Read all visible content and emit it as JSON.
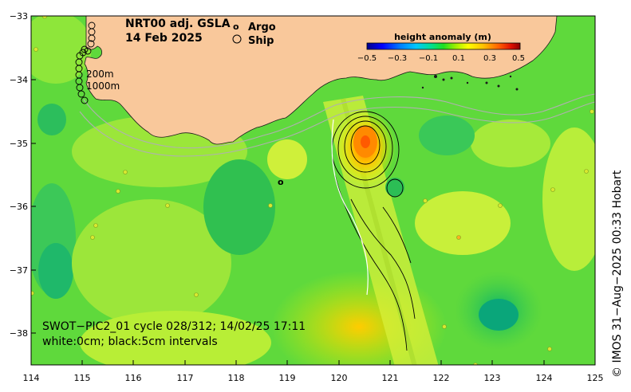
{
  "title": {
    "product": "NRT00 adj. GSLA",
    "date": "14 Feb 2025"
  },
  "legend": {
    "argo_symbol": "o",
    "argo_label": "Argo",
    "ship_label": "Ship",
    "argo_color": "#ff00ff",
    "ship_color": "#000000"
  },
  "colorbar": {
    "title": "height anomaly (m)",
    "ticks": [
      "−0.5",
      "−0.3",
      "−0.1",
      "0.1",
      "0.3",
      "0.5"
    ],
    "colors": [
      "#00008b",
      "#0000ff",
      "#0080ff",
      "#00c0ff",
      "#00ff80",
      "#40ff00",
      "#a0ff00",
      "#ffff00",
      "#ffc000",
      "#ff8000",
      "#ff2000",
      "#8b0000"
    ]
  },
  "bathymetry": {
    "contour_1": "200m",
    "contour_2": "1000m"
  },
  "swot": {
    "line1": "SWOT−PIC2_01 cycle 028/312; 14/02/25 17:11",
    "line2": "white:0cm; black:5cm intervals"
  },
  "axes": {
    "x_ticks": [
      "114",
      "115",
      "116",
      "117",
      "118",
      "119",
      "120",
      "121",
      "122",
      "123",
      "124",
      "125"
    ],
    "y_ticks": [
      "−33",
      "−34",
      "−35",
      "−36",
      "−37",
      "−38"
    ],
    "lon_range": [
      114,
      125
    ],
    "lat_range": [
      -38.5,
      -33
    ]
  },
  "credit": "© IMOS 31−Aug−2025 00:33 Hobart",
  "colors": {
    "land": "#f9c89b",
    "background_field": "#5fd93c"
  }
}
